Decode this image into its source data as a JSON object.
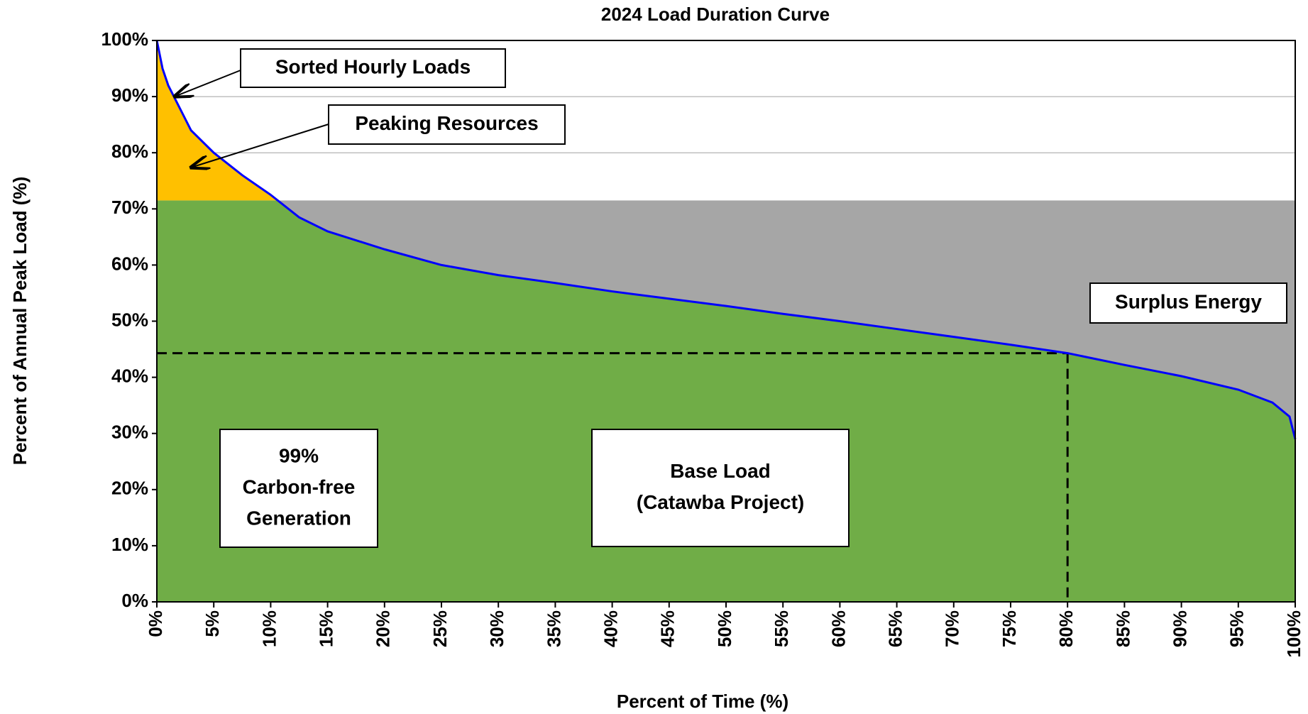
{
  "chart_data": {
    "type": "line",
    "title": "2024 Load Duration Curve",
    "x_label": "Percent of Time  (%)",
    "y_label": "Percent of Annual Peak Load  (%)",
    "x": [
      0,
      0.5,
      1,
      2,
      3,
      5,
      7.5,
      10,
      12.5,
      15,
      20,
      25,
      30,
      35,
      40,
      45,
      50,
      55,
      60,
      65,
      70,
      75,
      80,
      85,
      90,
      95,
      98,
      99.5,
      100
    ],
    "series": [
      {
        "name": "Sorted Hourly Loads",
        "color": "#0000ff",
        "values": [
          100,
          95,
          92,
          88,
          84,
          80,
          76,
          72.5,
          68.5,
          66,
          62.8,
          60,
          58.2,
          56.8,
          55.3,
          54,
          52.7,
          51.3,
          50,
          48.6,
          47.2,
          45.8,
          44.3,
          42.2,
          40.2,
          37.8,
          35.5,
          33,
          29
        ]
      }
    ],
    "base_level": 71.5,
    "reference": {
      "x": 80,
      "y": 44.3
    },
    "colors": {
      "carbon_free": "#70ad47",
      "peaking": "#ffc000",
      "surplus": "#a6a6a6"
    },
    "annotations": {
      "sorted": {
        "lines": [
          "Sorted Hourly Loads"
        ]
      },
      "peaking": {
        "lines": [
          "Peaking Resources"
        ]
      },
      "surplus": {
        "lines": [
          "Surplus Energy"
        ]
      },
      "carbon_free": {
        "lines": [
          "99%",
          "Carbon-free",
          "Generation"
        ]
      },
      "base_load": {
        "lines": [
          "Base Load",
          "(Catawba Project)"
        ]
      }
    },
    "xlim": [
      0,
      100
    ],
    "ylim": [
      0,
      100
    ],
    "xticks": [
      {
        "value": 0,
        "label": "0%"
      },
      {
        "value": 5,
        "label": "5%"
      },
      {
        "value": 10,
        "label": "10%"
      },
      {
        "value": 15,
        "label": "15%"
      },
      {
        "value": 20,
        "label": "20%"
      },
      {
        "value": 25,
        "label": "25%"
      },
      {
        "value": 30,
        "label": "30%"
      },
      {
        "value": 35,
        "label": "35%"
      },
      {
        "value": 40,
        "label": "40%"
      },
      {
        "value": 45,
        "label": "45%"
      },
      {
        "value": 50,
        "label": "50%"
      },
      {
        "value": 55,
        "label": "55%"
      },
      {
        "value": 60,
        "label": "60%"
      },
      {
        "value": 65,
        "label": "65%"
      },
      {
        "value": 70,
        "label": "70%"
      },
      {
        "value": 75,
        "label": "75%"
      },
      {
        "value": 80,
        "label": "80%"
      },
      {
        "value": 85,
        "label": "85%"
      },
      {
        "value": 90,
        "label": "90%"
      },
      {
        "value": 95,
        "label": "95%"
      },
      {
        "value": 100,
        "label": "100%"
      }
    ],
    "yticks": [
      {
        "value": 0,
        "label": "0%"
      },
      {
        "value": 10,
        "label": "10%"
      },
      {
        "value": 20,
        "label": "20%"
      },
      {
        "value": 30,
        "label": "30%"
      },
      {
        "value": 40,
        "label": "40%"
      },
      {
        "value": 50,
        "label": "50%"
      },
      {
        "value": 60,
        "label": "60%"
      },
      {
        "value": 70,
        "label": "70%"
      },
      {
        "value": 80,
        "label": "80%"
      },
      {
        "value": 90,
        "label": "90%"
      },
      {
        "value": 100,
        "label": "100%"
      }
    ],
    "grid": true
  }
}
